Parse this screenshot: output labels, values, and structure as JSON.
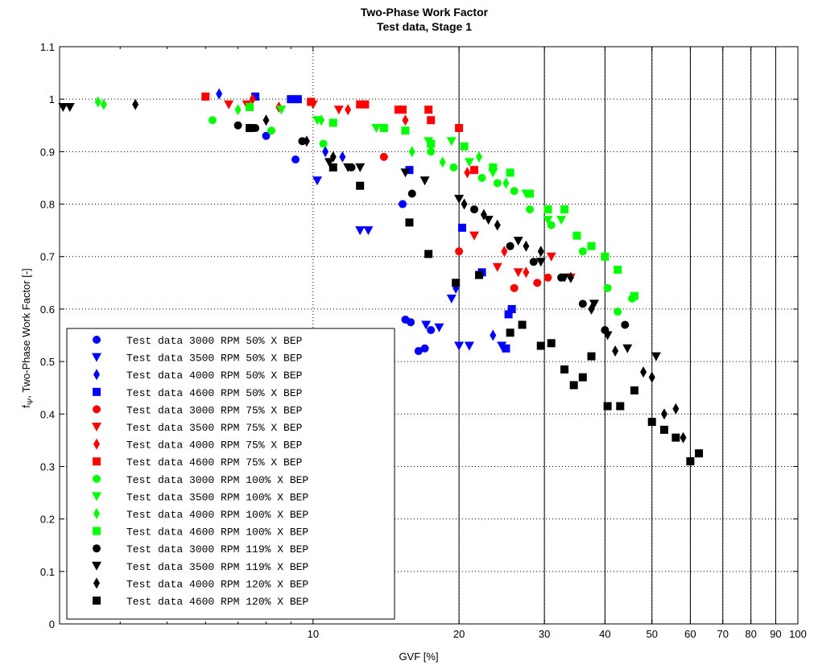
{
  "chart_data": {
    "type": "scatter",
    "title": "Two-Phase Work Factor",
    "subtitle": "Test data, Stage 1",
    "xlabel": "GVF [%]",
    "ylabel": "fΨ, Two-Phase Work Factor [-]",
    "ylabel_main": "f",
    "ylabel_sub": "Ψ",
    "ylabel_rest": ", Two-Phase Work Factor [-]",
    "xscale": "log",
    "xlim": [
      3,
      100
    ],
    "ylim": [
      0,
      1.1
    ],
    "xticks": [
      {
        "value": 10,
        "label": "10"
      },
      {
        "value": 20,
        "label": "20"
      },
      {
        "value": 30,
        "label": "30"
      },
      {
        "value": 40,
        "label": "40"
      },
      {
        "value": 50,
        "label": "50"
      },
      {
        "value": 60,
        "label": "60"
      },
      {
        "value": 70,
        "label": "70"
      },
      {
        "value": 80,
        "label": "80"
      },
      {
        "value": 90,
        "label": "90"
      },
      {
        "value": 100,
        "label": "100"
      }
    ],
    "yticks": [
      "0",
      "0.1",
      "0.2",
      "0.3",
      "0.4",
      "0.5",
      "0.6",
      "0.7",
      "0.8",
      "0.9",
      "1",
      "1.1"
    ],
    "vertical_lines": [
      20,
      30,
      40,
      50,
      60,
      70,
      80,
      90
    ],
    "grid": "dotted",
    "legend_position": "bottom-left",
    "series": [
      {
        "name": "Test data 3000 RPM 50% X BEP",
        "color": "#0000ff",
        "marker": "circle",
        "points": [
          [
            8.0,
            0.93
          ],
          [
            9.2,
            0.885
          ],
          [
            15.3,
            0.8
          ],
          [
            15.5,
            0.58
          ],
          [
            15.9,
            0.575
          ],
          [
            16.5,
            0.52
          ],
          [
            17.0,
            0.525
          ],
          [
            17.5,
            0.56
          ]
        ]
      },
      {
        "name": "Test data 3500 RPM 50% X BEP",
        "color": "#0000ff",
        "marker": "triangle-down",
        "points": [
          [
            10.2,
            0.845
          ],
          [
            12.5,
            0.75
          ],
          [
            13.0,
            0.75
          ],
          [
            17.1,
            0.57
          ],
          [
            18.2,
            0.565
          ],
          [
            19.3,
            0.62
          ],
          [
            20.0,
            0.53
          ],
          [
            21.0,
            0.53
          ],
          [
            24.5,
            0.53
          ]
        ]
      },
      {
        "name": "Test data 4000 RPM 50% X BEP",
        "color": "#0000ff",
        "marker": "diamond",
        "points": [
          [
            6.4,
            1.01
          ],
          [
            10.6,
            0.9
          ],
          [
            11.5,
            0.89
          ],
          [
            19.7,
            0.64
          ],
          [
            23.5,
            0.55
          ]
        ]
      },
      {
        "name": "Test data 4600 RPM 50% X BEP",
        "color": "#0000ff",
        "marker": "square",
        "points": [
          [
            7.6,
            1.005
          ],
          [
            9.0,
            1.0
          ],
          [
            9.3,
            1.0
          ],
          [
            15.8,
            0.865
          ],
          [
            20.3,
            0.755
          ],
          [
            22.3,
            0.67
          ],
          [
            25.3,
            0.59
          ],
          [
            25.7,
            0.6
          ],
          [
            25.0,
            0.525
          ]
        ]
      },
      {
        "name": "Test data 3000 RPM 75% X BEP",
        "color": "#ff0000",
        "marker": "circle",
        "points": [
          [
            14.0,
            0.89
          ],
          [
            20.0,
            0.71
          ],
          [
            26.0,
            0.64
          ],
          [
            29.0,
            0.65
          ],
          [
            30.5,
            0.66
          ]
        ]
      },
      {
        "name": "Test data 3500 RPM 75% X BEP",
        "color": "#ff0000",
        "marker": "triangle-down",
        "points": [
          [
            6.7,
            0.99
          ],
          [
            7.3,
            0.99
          ],
          [
            10.0,
            0.99
          ],
          [
            11.3,
            0.98
          ],
          [
            21.5,
            0.74
          ],
          [
            24.0,
            0.68
          ],
          [
            26.5,
            0.67
          ],
          [
            31.0,
            0.7
          ],
          [
            34.0,
            0.66
          ]
        ]
      },
      {
        "name": "Test data 4000 RPM 75% X BEP",
        "color": "#ff0000",
        "marker": "diamond",
        "points": [
          [
            7.5,
            1.0
          ],
          [
            8.5,
            0.985
          ],
          [
            11.8,
            0.98
          ],
          [
            15.5,
            0.96
          ],
          [
            20.8,
            0.86
          ],
          [
            24.8,
            0.71
          ],
          [
            27.5,
            0.67
          ]
        ]
      },
      {
        "name": "Test data 4600 RPM 75% X BEP",
        "color": "#ff0000",
        "marker": "square",
        "points": [
          [
            6.0,
            1.005
          ],
          [
            9.9,
            0.995
          ],
          [
            12.5,
            0.99
          ],
          [
            12.8,
            0.99
          ],
          [
            15.0,
            0.98
          ],
          [
            15.3,
            0.98
          ],
          [
            17.3,
            0.98
          ],
          [
            17.5,
            0.96
          ],
          [
            20.0,
            0.945
          ],
          [
            21.5,
            0.865
          ]
        ]
      },
      {
        "name": "Test data 3000 RPM 100% X BEP",
        "color": "#00ff00",
        "marker": "circle",
        "points": [
          [
            6.2,
            0.96
          ],
          [
            8.2,
            0.94
          ],
          [
            10.5,
            0.915
          ],
          [
            17.5,
            0.9
          ],
          [
            19.5,
            0.87
          ],
          [
            22.3,
            0.85
          ],
          [
            24.0,
            0.84
          ],
          [
            26.0,
            0.825
          ],
          [
            28.0,
            0.79
          ],
          [
            31.0,
            0.76
          ],
          [
            36.0,
            0.71
          ],
          [
            40.5,
            0.64
          ],
          [
            42.5,
            0.595
          ],
          [
            45.5,
            0.62
          ]
        ]
      },
      {
        "name": "Test data 3500 RPM 100% X BEP",
        "color": "#00ff00",
        "marker": "triangle-down",
        "points": [
          [
            8.6,
            0.98
          ],
          [
            10.2,
            0.96
          ],
          [
            13.5,
            0.945
          ],
          [
            17.3,
            0.92
          ],
          [
            19.3,
            0.92
          ],
          [
            21.0,
            0.88
          ],
          [
            23.5,
            0.86
          ],
          [
            27.5,
            0.82
          ],
          [
            30.5,
            0.77
          ],
          [
            32.5,
            0.77
          ]
        ]
      },
      {
        "name": "Test data 4000 RPM 100% X BEP",
        "color": "#00ff00",
        "marker": "diamond",
        "points": [
          [
            3.6,
            0.995
          ],
          [
            3.7,
            0.99
          ],
          [
            7.0,
            0.98
          ],
          [
            10.4,
            0.96
          ],
          [
            16.0,
            0.9
          ],
          [
            18.5,
            0.88
          ],
          [
            22.0,
            0.89
          ],
          [
            25.0,
            0.84
          ]
        ]
      },
      {
        "name": "Test data 4600 RPM 100% X BEP",
        "color": "#00ff00",
        "marker": "square",
        "points": [
          [
            7.4,
            0.985
          ],
          [
            11.0,
            0.955
          ],
          [
            14.0,
            0.945
          ],
          [
            15.5,
            0.94
          ],
          [
            17.5,
            0.915
          ],
          [
            20.5,
            0.91
          ],
          [
            23.5,
            0.87
          ],
          [
            25.5,
            0.86
          ],
          [
            28.0,
            0.82
          ],
          [
            30.5,
            0.79
          ],
          [
            33.0,
            0.79
          ],
          [
            35.0,
            0.74
          ],
          [
            37.5,
            0.72
          ],
          [
            40.0,
            0.7
          ],
          [
            42.5,
            0.675
          ],
          [
            46.0,
            0.625
          ]
        ]
      },
      {
        "name": "Test data 3000 RPM 119% X BEP",
        "color": "#000000",
        "marker": "circle",
        "points": [
          [
            7.0,
            0.95
          ],
          [
            7.6,
            0.945
          ],
          [
            9.5,
            0.92
          ],
          [
            12.0,
            0.87
          ],
          [
            16.0,
            0.82
          ],
          [
            21.5,
            0.79
          ],
          [
            25.5,
            0.72
          ],
          [
            28.5,
            0.69
          ],
          [
            32.5,
            0.66
          ],
          [
            36.0,
            0.61
          ],
          [
            40.0,
            0.56
          ],
          [
            44.0,
            0.57
          ]
        ]
      },
      {
        "name": "Test data 3500 RPM 119% X BEP",
        "color": "#000000",
        "marker": "triangle-down",
        "points": [
          [
            3.05,
            0.985
          ],
          [
            3.15,
            0.985
          ],
          [
            10.8,
            0.88
          ],
          [
            11.8,
            0.87
          ],
          [
            12.5,
            0.87
          ],
          [
            15.5,
            0.86
          ],
          [
            17.0,
            0.845
          ],
          [
            20.0,
            0.81
          ],
          [
            23.0,
            0.77
          ],
          [
            26.5,
            0.73
          ],
          [
            29.5,
            0.69
          ],
          [
            33.0,
            0.66
          ],
          [
            38.0,
            0.61
          ],
          [
            40.5,
            0.55
          ],
          [
            44.5,
            0.525
          ],
          [
            51.0,
            0.51
          ]
        ]
      },
      {
        "name": "Test data 4000 RPM 120% X BEP",
        "color": "#000000",
        "marker": "diamond",
        "points": [
          [
            4.3,
            0.99
          ],
          [
            8.0,
            0.96
          ],
          [
            9.7,
            0.92
          ],
          [
            11.0,
            0.89
          ],
          [
            20.5,
            0.8
          ],
          [
            22.5,
            0.78
          ],
          [
            24.0,
            0.76
          ],
          [
            27.5,
            0.72
          ],
          [
            29.5,
            0.71
          ],
          [
            34.0,
            0.66
          ],
          [
            37.5,
            0.6
          ],
          [
            42.0,
            0.52
          ],
          [
            48.0,
            0.48
          ],
          [
            50.0,
            0.47
          ],
          [
            53.0,
            0.4
          ],
          [
            56.0,
            0.41
          ],
          [
            58.0,
            0.355
          ]
        ]
      },
      {
        "name": "Test data 4600 RPM 120% X BEP",
        "color": "#000000",
        "marker": "square",
        "points": [
          [
            7.4,
            0.945
          ],
          [
            11.0,
            0.87
          ],
          [
            12.5,
            0.835
          ],
          [
            15.8,
            0.765
          ],
          [
            17.3,
            0.705
          ],
          [
            19.7,
            0.65
          ],
          [
            22.0,
            0.665
          ],
          [
            25.5,
            0.555
          ],
          [
            27.0,
            0.57
          ],
          [
            29.5,
            0.53
          ],
          [
            31.0,
            0.535
          ],
          [
            33.0,
            0.485
          ],
          [
            34.5,
            0.455
          ],
          [
            36.0,
            0.47
          ],
          [
            37.5,
            0.51
          ],
          [
            40.5,
            0.415
          ],
          [
            43.0,
            0.415
          ],
          [
            46.0,
            0.445
          ],
          [
            50.0,
            0.385
          ],
          [
            53.0,
            0.37
          ],
          [
            56.0,
            0.355
          ],
          [
            60.0,
            0.31
          ],
          [
            62.5,
            0.325
          ]
        ]
      }
    ]
  }
}
